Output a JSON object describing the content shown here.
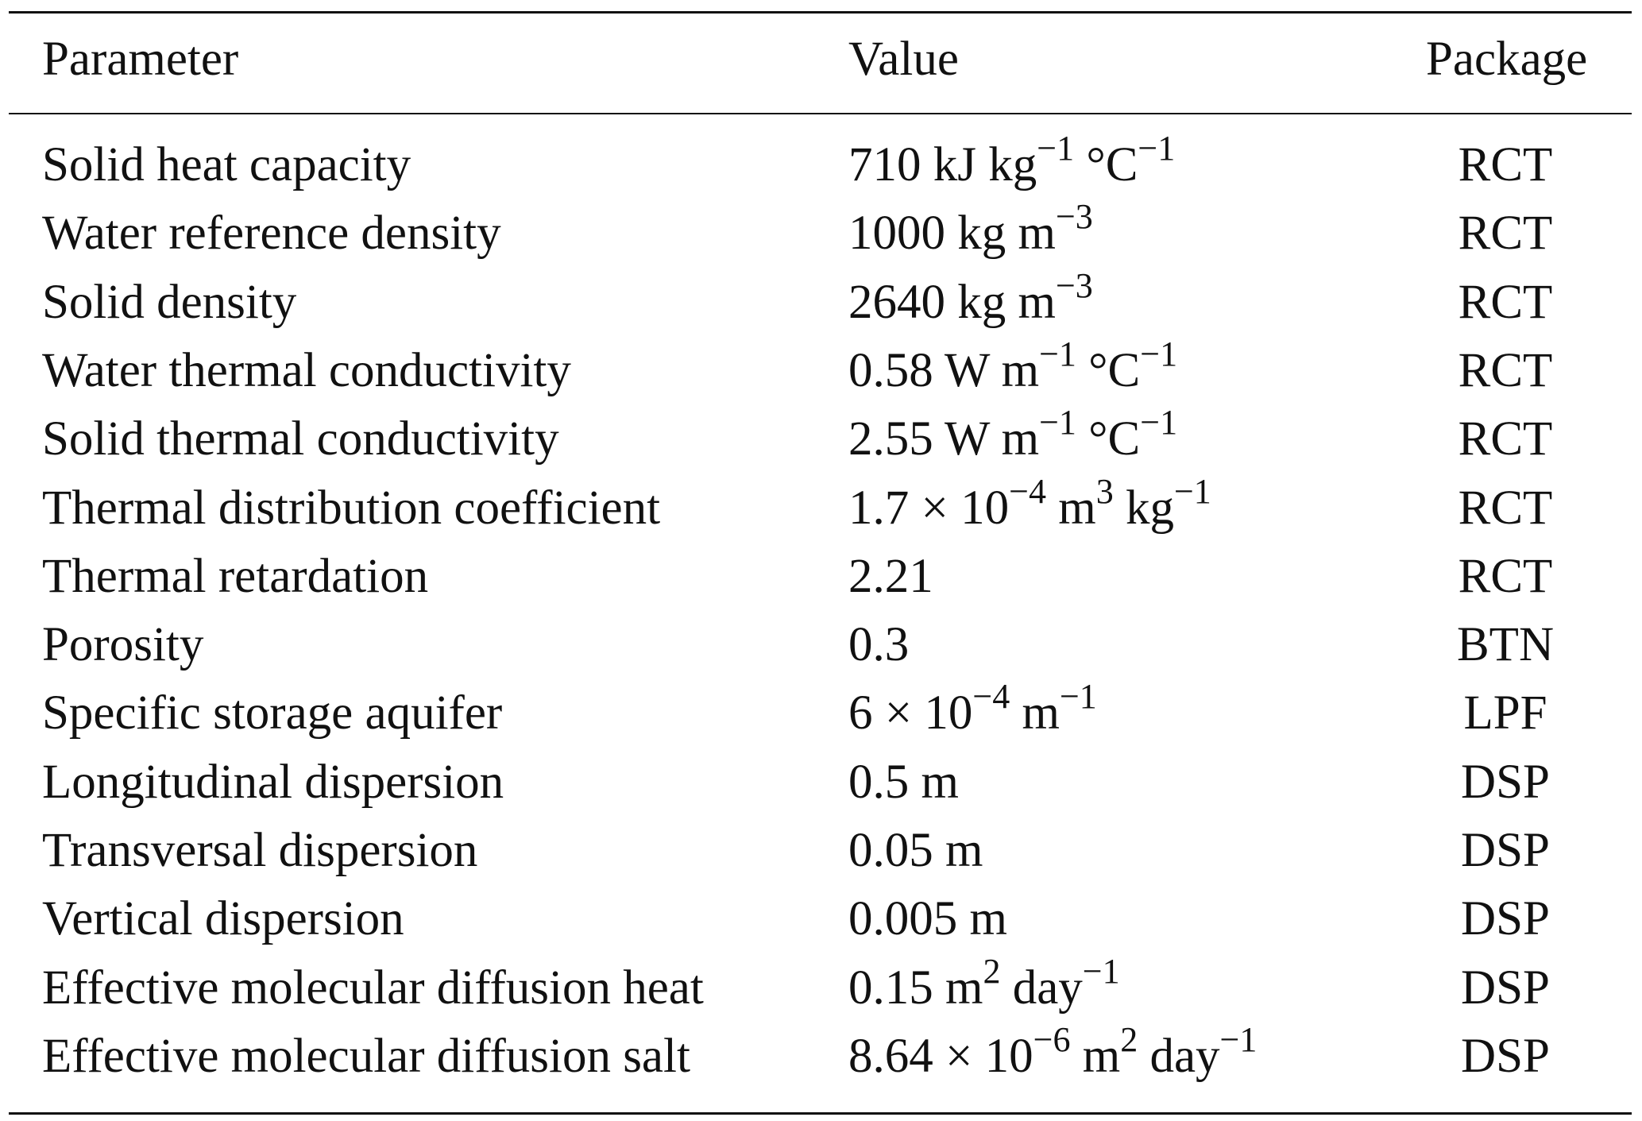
{
  "table": {
    "header": [
      "Parameter",
      "Value",
      "Package"
    ],
    "rows": [
      {
        "parameter": "Solid heat capacity",
        "value": [
          "710 kJ kg",
          "−1",
          " °C",
          "−1"
        ],
        "package": "RCT"
      },
      {
        "parameter": "Water reference density",
        "value": [
          "1000 kg m",
          "−3"
        ],
        "package": "RCT"
      },
      {
        "parameter": "Solid density",
        "value": [
          "2640 kg m",
          "−3"
        ],
        "package": "RCT"
      },
      {
        "parameter": "Water thermal conductivity",
        "value": [
          "0.58 W m",
          "−1",
          " °C",
          "−1"
        ],
        "package": "RCT"
      },
      {
        "parameter": "Solid thermal conductivity",
        "value": [
          "2.55 W m",
          "−1",
          " °C",
          "−1"
        ],
        "package": "RCT"
      },
      {
        "parameter": "Thermal distribution coefficient",
        "value": [
          "1.7 × 10",
          "−4",
          " m",
          "3",
          " kg",
          "−1"
        ],
        "package": "RCT"
      },
      {
        "parameter": "Thermal retardation",
        "value": [
          "2.21"
        ],
        "package": "RCT"
      },
      {
        "parameter": "Porosity",
        "value": [
          "0.3"
        ],
        "package": "BTN"
      },
      {
        "parameter": "Specific storage aquifer",
        "value": [
          "6 × 10",
          "−4",
          " m",
          "−1"
        ],
        "package": "LPF"
      },
      {
        "parameter": "Longitudinal dispersion",
        "value": [
          "0.5 m"
        ],
        "package": "DSP"
      },
      {
        "parameter": "Transversal dispersion",
        "value": [
          "0.05 m"
        ],
        "package": "DSP"
      },
      {
        "parameter": "Vertical dispersion",
        "value": [
          "0.005 m"
        ],
        "package": "DSP"
      },
      {
        "parameter": "Effective molecular diffusion heat",
        "value": [
          "0.15 m",
          "2",
          " day",
          "−1"
        ],
        "package": "DSP"
      },
      {
        "parameter": "Effective molecular diffusion salt",
        "value": [
          "8.64 × 10",
          "−6",
          " m",
          "2",
          " day",
          "−1"
        ],
        "package": "DSP"
      }
    ]
  }
}
